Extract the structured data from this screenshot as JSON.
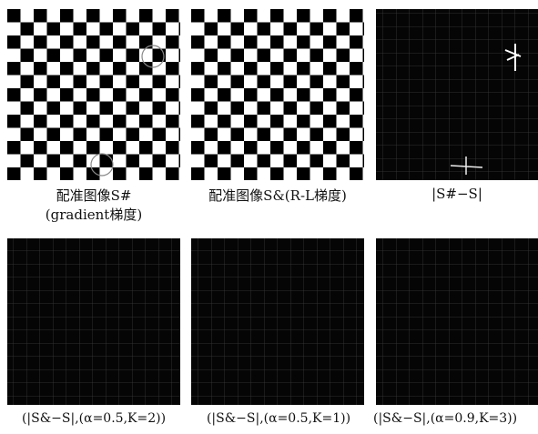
{
  "figure": {
    "panels": [
      {
        "caption": [
          "配准图像S#",
          "(gradient梯度)"
        ]
      },
      {
        "caption": [
          "配准图像S&(R-L梯度)"
        ]
      },
      {
        "caption": [
          "|S#−S|"
        ]
      },
      {
        "caption": [
          "(|S&−S|,(α=0.5,K=2))"
        ]
      },
      {
        "caption": [
          "(|S&−S|,(α=0.5,K=1))"
        ]
      },
      {
        "caption": [
          "(|S&−S|,(α=0.9,K=3))"
        ]
      }
    ]
  }
}
